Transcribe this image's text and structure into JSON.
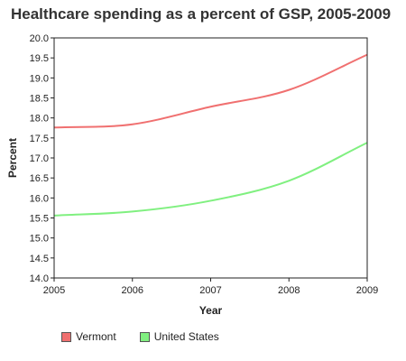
{
  "chart_data": {
    "type": "line",
    "title": "Healthcare spending as a percent of GSP, 2005-2009",
    "xlabel": "Year",
    "ylabel": "Percent",
    "x": [
      2005,
      2006,
      2007,
      2008,
      2009
    ],
    "xlim": [
      2005,
      2009
    ],
    "ylim": [
      14.0,
      20.0
    ],
    "y_ticks": [
      "14.0",
      "14.5",
      "15.0",
      "15.5",
      "16.0",
      "16.5",
      "17.0",
      "17.5",
      "18.0",
      "18.5",
      "19.0",
      "19.5",
      "20.0"
    ],
    "x_ticks": [
      "2005",
      "2006",
      "2007",
      "2008",
      "2009"
    ],
    "grid": false,
    "legend_position": "bottom-left",
    "series": [
      {
        "name": "Vermont",
        "color": "#f07070",
        "values": [
          17.76,
          17.84,
          18.28,
          18.7,
          19.58
        ]
      },
      {
        "name": "United States",
        "color": "#80f080",
        "values": [
          15.56,
          15.66,
          15.93,
          16.43,
          17.38
        ]
      }
    ]
  }
}
